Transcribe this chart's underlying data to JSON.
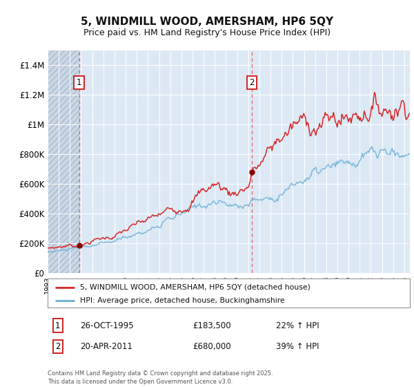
{
  "title": "5, WINDMILL WOOD, AMERSHAM, HP6 5QY",
  "subtitle": "Price paid vs. HM Land Registry's House Price Index (HPI)",
  "legend_line1": "5, WINDMILL WOOD, AMERSHAM, HP6 5QY (detached house)",
  "legend_line2": "HPI: Average price, detached house, Buckinghamshire",
  "footnote": "Contains HM Land Registry data © Crown copyright and database right 2025.\nThis data is licensed under the Open Government Licence v3.0.",
  "sale1_date": "26-OCT-1995",
  "sale1_price": "£183,500",
  "sale1_hpi": "22% ↑ HPI",
  "sale2_date": "20-APR-2011",
  "sale2_price": "£680,000",
  "sale2_hpi": "39% ↑ HPI",
  "hpi_color": "#6baed6",
  "price_color": "#d62728",
  "sale_marker_color": "#8b0000",
  "vline_color": "#e06060",
  "plot_bg_color": "#dce9f5",
  "hatch_bg_color": "#c8d8eb",
  "ylim": [
    0,
    1500000
  ],
  "yticks": [
    0,
    200000,
    400000,
    600000,
    800000,
    1000000,
    1200000,
    1400000
  ],
  "ytick_labels": [
    "£0",
    "£200K",
    "£400K",
    "£600K",
    "£800K",
    "£1M",
    "£1.2M",
    "£1.4M"
  ],
  "sale1_year": 1995.82,
  "sale1_value": 183500,
  "sale2_year": 2011.3,
  "sale2_value": 680000,
  "xmin": 1993.0,
  "xmax": 2025.5,
  "hpi_knots_t": [
    1993.0,
    1994.0,
    1995.0,
    1995.82,
    1997.0,
    1999.0,
    2001.0,
    2003.0,
    2005.0,
    2007.0,
    2008.0,
    2009.0,
    2009.5,
    2010.0,
    2011.0,
    2011.3,
    2012.0,
    2013.0,
    2014.0,
    2015.0,
    2016.0,
    2017.0,
    2018.0,
    2019.0,
    2020.0,
    2021.0,
    2022.0,
    2023.0,
    2024.0,
    2025.0
  ],
  "hpi_knots_v": [
    140000,
    148000,
    158000,
    163000,
    182000,
    210000,
    265000,
    320000,
    385000,
    465000,
    480000,
    455000,
    440000,
    450000,
    472000,
    490000,
    495000,
    510000,
    545000,
    590000,
    630000,
    665000,
    685000,
    700000,
    715000,
    745000,
    790000,
    800000,
    795000,
    800000
  ],
  "price_knots_t": [
    1993.0,
    1994.0,
    1995.0,
    1995.82,
    1997.0,
    1999.0,
    2001.0,
    2003.0,
    2005.0,
    2007.0,
    2008.0,
    2009.0,
    2009.5,
    2010.0,
    2011.0,
    2011.3,
    2012.0,
    2013.0,
    2014.0,
    2015.0,
    2016.0,
    2017.0,
    2018.0,
    2019.0,
    2020.0,
    2021.0,
    2022.0,
    2023.0,
    2024.0,
    2025.0
  ],
  "price_knots_v": [
    168000,
    177000,
    188000,
    183500,
    217000,
    251000,
    318000,
    383000,
    460000,
    556000,
    602000,
    565000,
    536000,
    560000,
    595000,
    680000,
    730000,
    820000,
    920000,
    980000,
    1010000,
    1020000,
    1020000,
    1040000,
    1050000,
    1100000,
    1150000,
    1120000,
    1130000,
    1180000
  ]
}
